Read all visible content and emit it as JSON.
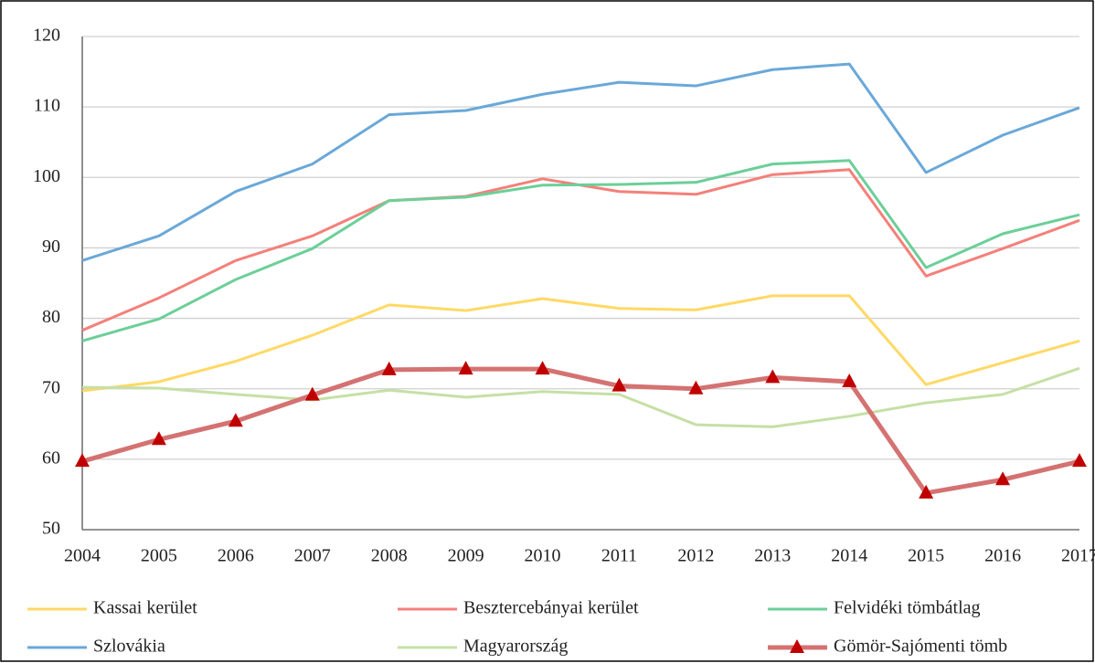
{
  "chart_data": {
    "type": "line",
    "categories": [
      "2004",
      "2005",
      "2006",
      "2007",
      "2008",
      "2009",
      "2010",
      "2011",
      "2012",
      "2013",
      "2014",
      "2015",
      "2016",
      "2017"
    ],
    "ylim": [
      50,
      120
    ],
    "yticks": [
      50,
      60,
      70,
      80,
      90,
      100,
      110,
      120
    ],
    "grid": true,
    "legend": "bottom",
    "series": [
      {
        "name": "Kassai kerület",
        "color": "#ffd966",
        "values": [
          69.7,
          71,
          73.9,
          77.6,
          81.9,
          81.1,
          82.8,
          81.4,
          81.2,
          83.2,
          83.2,
          70.6,
          73.7,
          76.8
        ]
      },
      {
        "name": "Besztercebányai kerület",
        "color": "#f4807a",
        "values": [
          78.3,
          82.9,
          88.2,
          91.7,
          96.7,
          97.3,
          99.8,
          98,
          97.6,
          100.4,
          101.1,
          86,
          89.9,
          93.9
        ]
      },
      {
        "name": "Felvidéki tömbátlag",
        "color": "#6ccf98",
        "values": [
          76.8,
          79.9,
          85.5,
          89.9,
          96.7,
          97.2,
          98.9,
          99,
          99.3,
          101.9,
          102.4,
          87.2,
          92,
          94.7
        ]
      },
      {
        "name": "Szlovákia",
        "color": "#6aa8d8",
        "values": [
          88.2,
          91.7,
          98,
          101.9,
          108.9,
          109.5,
          111.8,
          113.5,
          113,
          115.3,
          116.1,
          100.7,
          106,
          109.9
        ]
      },
      {
        "name": "Magyarország",
        "color": "#c5e0a5",
        "values": [
          70.2,
          70.1,
          69.2,
          68.4,
          69.8,
          68.8,
          69.6,
          69.2,
          64.9,
          64.6,
          66.1,
          68,
          69.2,
          72.9
        ]
      },
      {
        "name": "Gömör-Sajómenti tömb",
        "color": "#d47272",
        "marker": "triangle",
        "marker_color": "#c00000",
        "values": [
          59.7,
          62.8,
          65.4,
          69.1,
          72.7,
          72.8,
          72.8,
          70.4,
          70,
          71.6,
          71,
          55.2,
          57.1,
          59.7
        ]
      }
    ]
  }
}
